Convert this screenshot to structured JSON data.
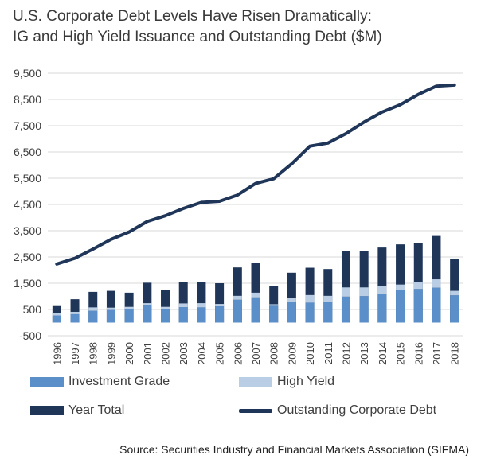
{
  "title_line1": "U.S. Corporate Debt Levels Have Risen Dramatically:",
  "title_line2": "IG and High Yield Issuance and Outstanding Debt ($M)",
  "source": "Source: Securities Industry and Financial Markets Association (SIFMA)",
  "colors": {
    "investment_grade": "#5b8fc9",
    "high_yield": "#b9cde5",
    "year_total": "#1f3658",
    "outstanding": "#1f3658",
    "grid": "#d9d9d9"
  },
  "chart_data": {
    "type": "bar",
    "title": "U.S. Corporate Debt Levels Have Risen Dramatically: IG and High Yield Issuance and Outstanding Debt ($M)",
    "categories": [
      "1996",
      "1997",
      "1998",
      "1999",
      "2000",
      "2001",
      "2002",
      "2003",
      "2004",
      "2005",
      "2006",
      "2007",
      "2008",
      "2009",
      "2010",
      "2011",
      "2012",
      "2013",
      "2014",
      "2015",
      "2016",
      "2017",
      "2018"
    ],
    "ylim": [
      -500,
      9500
    ],
    "yticks": [
      "9,500",
      "8,500",
      "7,500",
      "6,500",
      "5,500",
      "4,500",
      "3,500",
      "2,500",
      "1,500",
      "500",
      "-500"
    ],
    "ytick_values": [
      9500,
      8500,
      7500,
      6500,
      5500,
      4500,
      3500,
      2500,
      1500,
      500,
      -500
    ],
    "grid": true,
    "legend": "bottom",
    "series": [
      {
        "name": "Investment Grade",
        "type": "bar",
        "values": [
          270,
          320,
          450,
          480,
          520,
          650,
          530,
          590,
          580,
          620,
          870,
          960,
          640,
          800,
          760,
          780,
          990,
          1010,
          1100,
          1230,
          1280,
          1330,
          1040
        ]
      },
      {
        "name": "High Yield",
        "type": "bar",
        "values": [
          90,
          90,
          130,
          90,
          80,
          90,
          70,
          140,
          160,
          90,
          150,
          180,
          60,
          150,
          290,
          240,
          350,
          330,
          300,
          220,
          250,
          320,
          170
        ]
      },
      {
        "name": "Year Total",
        "type": "bar",
        "values": [
          630,
          890,
          1170,
          1210,
          1140,
          1520,
          1240,
          1550,
          1540,
          1500,
          2100,
          2270,
          1400,
          1900,
          2090,
          2040,
          2730,
          2730,
          2860,
          2980,
          3030,
          3300,
          2440
        ]
      },
      {
        "name": "Outstanding Corporate Debt",
        "type": "line",
        "values": [
          2230,
          2450,
          2800,
          3170,
          3450,
          3850,
          4070,
          4350,
          4580,
          4620,
          4860,
          5300,
          5480,
          6050,
          6720,
          6840,
          7200,
          7640,
          8020,
          8300,
          8690,
          9010,
          9050
        ]
      }
    ]
  }
}
